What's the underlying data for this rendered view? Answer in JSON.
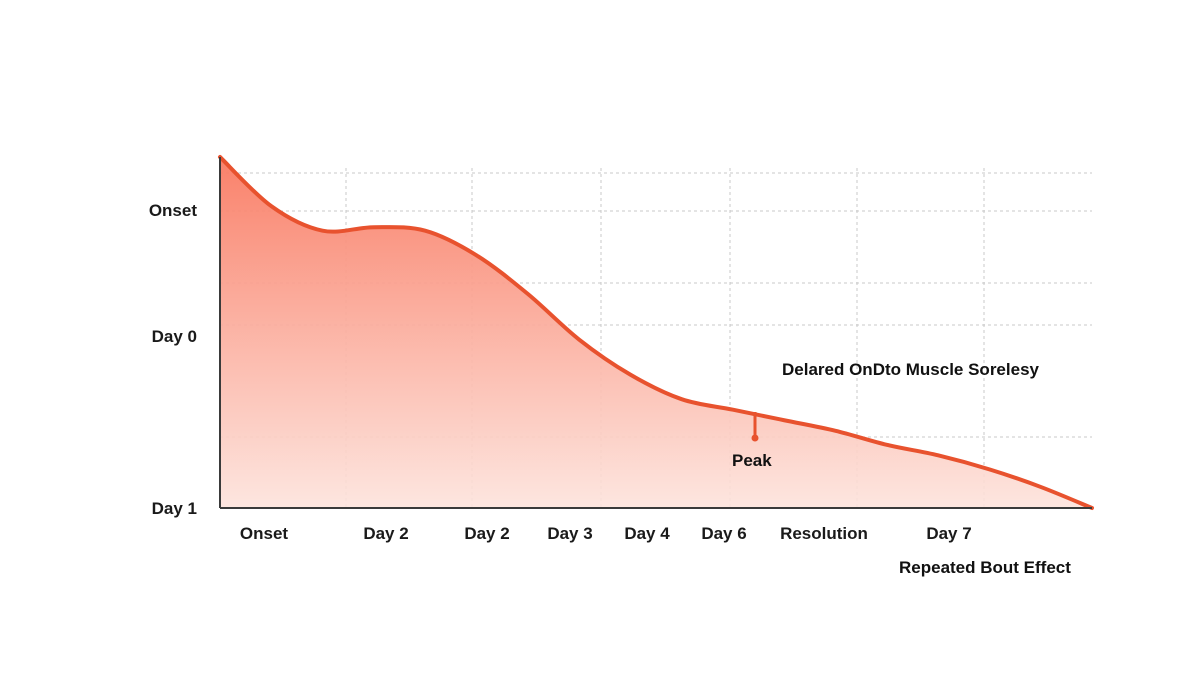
{
  "chart_data": {
    "type": "area",
    "title": "",
    "xlabel": "",
    "ylabel": "",
    "grid": true,
    "x_tick_labels": [
      "Onset",
      "Day 2",
      "Day 2",
      "Day 3",
      "Day 4",
      "Day 6",
      "Resolution",
      "Day 7"
    ],
    "y_tick_labels": [
      "Onset",
      "Day 0",
      "Day 1"
    ],
    "series": [
      {
        "x": [
          0,
          0.5,
          1,
          1.5,
          2,
          2.5,
          3,
          3.5,
          4,
          4.5,
          5,
          5.5,
          6,
          6.5,
          7,
          7.5,
          8,
          8.5
        ],
        "values": [
          1.0,
          0.86,
          0.79,
          0.8,
          0.79,
          0.72,
          0.61,
          0.48,
          0.38,
          0.31,
          0.28,
          0.25,
          0.22,
          0.18,
          0.15,
          0.11,
          0.06,
          0.0
        ]
      }
    ],
    "ylim": [
      0,
      1
    ],
    "xlim": [
      0,
      8.5
    ],
    "line_color": "#e8522e",
    "fill_color_top": "#f97a62",
    "fill_color_bottom": "#fde3dc",
    "annotations": [
      {
        "text": "Delared OnDto Muscle Sorelesy"
      },
      {
        "text": "Peak",
        "x": 4.15,
        "y": 0.2
      },
      {
        "text": "Repeated Bout Effect"
      }
    ]
  }
}
